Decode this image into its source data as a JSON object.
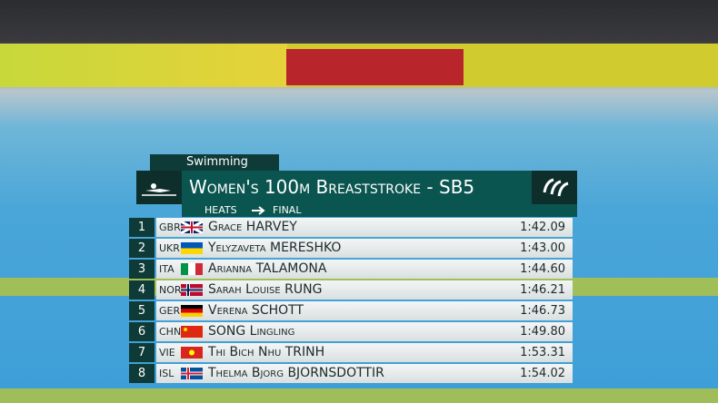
{
  "header": {
    "sport": "Swimming",
    "title": "Women's 100m Breaststroke - SB5",
    "stage_from": "HEATS",
    "stage_to": "FINAL"
  },
  "table": {
    "rows": [
      [
        "1",
        "GBR",
        "Grace HARVEY",
        "1:42.09"
      ],
      [
        "2",
        "UKR",
        "Yelyzaveta MERESHKO",
        "1:43.00"
      ],
      [
        "3",
        "ITA",
        "Arianna TALAMONA",
        "1:44.60"
      ],
      [
        "4",
        "NOR",
        "Sarah Louise RUNG",
        "1:46.21"
      ],
      [
        "5",
        "GER",
        "Verena SCHOTT",
        "1:46.73"
      ],
      [
        "6",
        "CHN",
        "SONG Lingling",
        "1:49.80"
      ],
      [
        "7",
        "VIE",
        "Thi Bich Nhu TRINH",
        "1:53.31"
      ],
      [
        "8",
        "ISL",
        "Thelma Bjorg BJORNSDOTTIR",
        "1:54.02"
      ]
    ]
  }
}
